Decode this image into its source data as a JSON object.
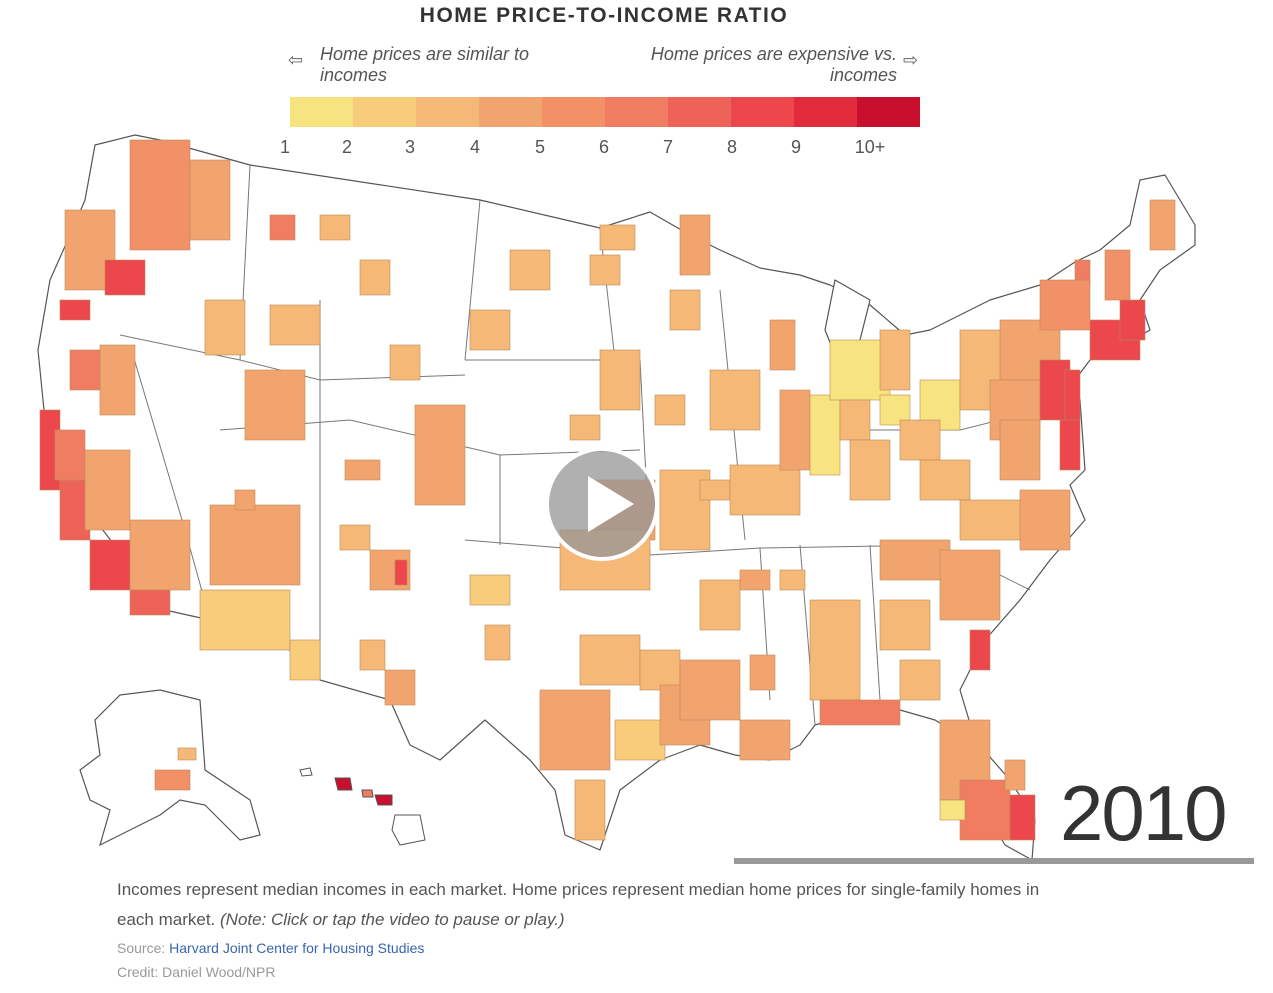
{
  "title": "HOME PRICE-TO-INCOME RATIO",
  "legend": {
    "left_arrow_icon": "arrow-left-icon",
    "left_note": "Home prices are similar to incomes",
    "right_note": "Home prices are expensive vs. incomes",
    "right_arrow_icon": "arrow-right-icon",
    "colors": [
      "#f7e37f",
      "#f7cc7b",
      "#f5b877",
      "#f2a46e",
      "#f29068",
      "#f07d62",
      "#ee6358",
      "#ec474d",
      "#e22b3c",
      "#c8102e"
    ],
    "ticks": [
      "1",
      "2",
      "3",
      "4",
      "5",
      "6",
      "7",
      "8",
      "9",
      "10+"
    ]
  },
  "year": "2010",
  "caption_main": "Incomes represent median incomes in each market. Home prices represent median home prices for single-family homes in each market.",
  "caption_note": "(Note: Click or tap the video to pause or play.)",
  "source_label": "Source:",
  "source_name": "Harvard Joint Center for Housing Studies",
  "credit": "Credit: Daniel Wood/NPR",
  "play_icon": "play-icon"
}
